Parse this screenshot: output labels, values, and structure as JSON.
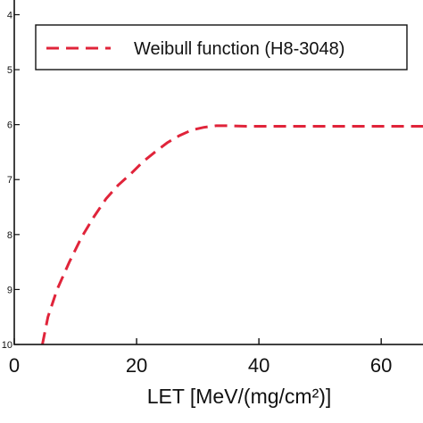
{
  "chart_data": {
    "type": "line",
    "title": "",
    "xlabel": "LET [MeV/(mg/cm²)]",
    "ylabel": "",
    "log_y": true,
    "xlim": [
      0,
      68
    ],
    "ylim": [
      -10,
      -3.7
    ],
    "x_ticks": [
      {
        "value": 0,
        "label": "0"
      },
      {
        "value": 20,
        "label": "20"
      },
      {
        "value": 40,
        "label": "40"
      },
      {
        "value": 60,
        "label": "60"
      }
    ],
    "y_ticks": [
      {
        "value": -4,
        "label": "4"
      },
      {
        "value": -5,
        "label": "5"
      },
      {
        "value": -6,
        "label": "6"
      },
      {
        "value": -7,
        "label": "7"
      },
      {
        "value": -8,
        "label": "8"
      },
      {
        "value": -9,
        "label": "9"
      },
      {
        "value": -10,
        "label": "10"
      }
    ],
    "grid": false,
    "legend": {
      "position": "top-right"
    },
    "series": [
      {
        "name": "Weibull function (H8-3048)",
        "color": "#e0243a",
        "style": "dashed",
        "x": [
          4.6,
          5.5,
          7,
          9,
          11,
          13,
          15,
          17,
          19,
          21,
          23,
          25,
          27,
          29,
          31,
          33,
          35,
          38,
          42,
          50,
          60,
          68
        ],
        "y": [
          -10,
          -9.5,
          -9.0,
          -8.5,
          -8.05,
          -7.68,
          -7.35,
          -7.1,
          -6.9,
          -6.68,
          -6.5,
          -6.33,
          -6.2,
          -6.1,
          -6.05,
          -6.02,
          -6.02,
          -6.03,
          -6.03,
          -6.03,
          -6.03,
          -6.03
        ]
      }
    ]
  }
}
